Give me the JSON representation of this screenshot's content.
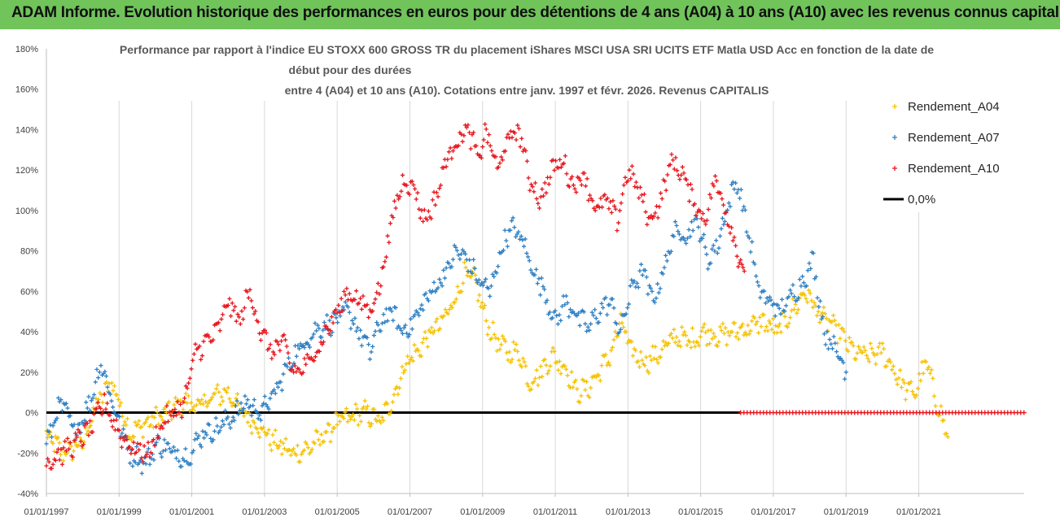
{
  "banner": {
    "title": "ADAM Informe. Evolution historique des performances en euros pour des détentions de 4 ans (A04) à 10 ans (A10) avec les revenus connus capitalisés",
    "background": "#70c45a"
  },
  "chart_data": {
    "type": "scatter",
    "title_lines": [
      "Performance par rapport à l'indice EU STOXX 600 GROSS TR  du placement iShares MSCI USA SRI UCITS ETF Matla USD Acc en fonction de la date de",
      "début pour des durées",
      "entre 4 (A04) et 10 ans (A10). Cotations entre janv. 1997 et févr. 2026. Revenus CAPITALIS"
    ],
    "xlabel": "",
    "ylabel": "",
    "xlim": [
      1997.0,
      2023.9
    ],
    "ylim": [
      -40,
      180
    ],
    "y_ticks": [
      -40,
      -20,
      0,
      20,
      40,
      60,
      80,
      100,
      120,
      140,
      160,
      180
    ],
    "y_tick_labels": [
      "-40%",
      "-20%",
      "0%",
      "20%",
      "40%",
      "60%",
      "80%",
      "100%",
      "120%",
      "140%",
      "160%",
      "180%"
    ],
    "x_ticks": [
      1997,
      1999,
      2001,
      2003,
      2005,
      2007,
      2009,
      2011,
      2013,
      2015,
      2017,
      2019,
      2021
    ],
    "x_tick_labels": [
      "01/01/1997",
      "01/01/1999",
      "01/01/2001",
      "01/01/2003",
      "01/01/2005",
      "01/01/2007",
      "01/01/2009",
      "01/01/2011",
      "01/01/2013",
      "01/01/2015",
      "01/01/2017",
      "01/01/2019",
      "01/01/2021"
    ],
    "grid": "vertical",
    "legend_position": "right",
    "series": [
      {
        "name": "Rendement_A04",
        "color": "#f5c200",
        "marker": "plus",
        "x": [
          1997.0,
          1997.5,
          1998.0,
          1998.4,
          1998.8,
          1999.3,
          1999.8,
          2000.3,
          2000.8,
          2001.2,
          2001.6,
          2002.0,
          2002.4,
          2002.9,
          2003.3,
          2003.8,
          2004.2,
          2004.6,
          2005.0,
          2005.4,
          2005.8,
          2006.2,
          2006.6,
          2006.9,
          2007.2,
          2007.6,
          2007.9,
          2008.2,
          2008.5,
          2008.8,
          2009.1,
          2009.4,
          2009.7,
          2010.0,
          2010.3,
          2010.6,
          2010.9,
          2011.3,
          2011.6,
          2011.9,
          2012.2,
          2012.5,
          2012.8,
          2013.1,
          2013.5,
          2013.9,
          2014.3,
          2014.7,
          2015.1,
          2015.5,
          2015.9,
          2016.3,
          2016.7,
          2017.1,
          2017.5,
          2017.9,
          2018.2,
          2018.5,
          2018.8,
          2019.2,
          2019.6,
          2020.0,
          2020.3,
          2020.6,
          2020.9,
          2021.2,
          2021.5,
          2021.8
        ],
        "values": [
          -12,
          -20,
          -15,
          5,
          15,
          -10,
          -5,
          0,
          5,
          3,
          8,
          10,
          0,
          -8,
          -15,
          -20,
          -18,
          -12,
          -5,
          -2,
          0,
          -5,
          10,
          25,
          30,
          40,
          45,
          55,
          68,
          65,
          45,
          35,
          30,
          30,
          15,
          20,
          28,
          22,
          10,
          12,
          20,
          28,
          45,
          30,
          25,
          30,
          38,
          35,
          40,
          38,
          40,
          42,
          45,
          40,
          50,
          60,
          50,
          45,
          40,
          30,
          28,
          30,
          22,
          12,
          10,
          25,
          5,
          -12
        ]
      },
      {
        "name": "Rendement_A07",
        "color": "#2e7fc2",
        "marker": "plus",
        "x": [
          1997.0,
          1997.4,
          1997.8,
          1998.2,
          1998.5,
          1998.9,
          1999.3,
          1999.7,
          2000.1,
          2000.5,
          2000.9,
          2001.3,
          2001.7,
          2002.1,
          2002.5,
          2002.9,
          2003.3,
          2003.7,
          2004.1,
          2004.5,
          2004.9,
          2005.3,
          2005.6,
          2005.9,
          2006.2,
          2006.5,
          2006.8,
          2007.1,
          2007.4,
          2007.7,
          2008.0,
          2008.3,
          2008.6,
          2008.9,
          2009.2,
          2009.5,
          2009.8,
          2010.1,
          2010.4,
          2010.7,
          2011.0,
          2011.3,
          2011.6,
          2011.9,
          2012.2,
          2012.5,
          2012.8,
          2013.1,
          2013.4,
          2013.7,
          2014.0,
          2014.3,
          2014.6,
          2014.9,
          2015.2,
          2015.5,
          2015.7,
          2016.0,
          2016.3,
          2016.6,
          2016.9,
          2017.2,
          2017.5,
          2017.8,
          2018.1,
          2018.4,
          2018.7,
          2019.0
        ],
        "values": [
          -15,
          5,
          -10,
          5,
          25,
          0,
          -20,
          -25,
          -15,
          -20,
          -22,
          -10,
          -8,
          -2,
          5,
          0,
          10,
          25,
          35,
          42,
          45,
          50,
          40,
          30,
          45,
          50,
          40,
          45,
          55,
          62,
          70,
          80,
          75,
          65,
          60,
          80,
          92,
          85,
          70,
          60,
          45,
          55,
          48,
          42,
          50,
          55,
          40,
          62,
          70,
          55,
          72,
          90,
          88,
          95,
          75,
          85,
          100,
          115,
          90,
          60,
          55,
          50,
          58,
          65,
          75,
          40,
          32,
          20
        ]
      },
      {
        "name": "Rendement_A10",
        "color": "#e8141c",
        "marker": "plus",
        "x": [
          1997.0,
          1997.4,
          1997.8,
          1998.2,
          1998.6,
          1999.0,
          1999.4,
          1999.8,
          2000.2,
          2000.5,
          2000.8,
          2001.1,
          2001.4,
          2001.7,
          2002.0,
          2002.3,
          2002.6,
          2002.9,
          2003.2,
          2003.5,
          2003.8,
          2004.1,
          2004.4,
          2004.7,
          2005.0,
          2005.3,
          2005.6,
          2005.9,
          2006.2,
          2006.5,
          2006.8,
          2007.1,
          2007.4,
          2007.7,
          2008.0,
          2008.3,
          2008.6,
          2008.9,
          2009.1,
          2009.4,
          2009.7,
          2010.0,
          2010.3,
          2010.6,
          2010.9,
          2011.2,
          2011.5,
          2011.8,
          2012.1,
          2012.4,
          2012.7,
          2013.0,
          2013.3,
          2013.6,
          2013.9,
          2014.2,
          2014.5,
          2014.8,
          2015.1,
          2015.4,
          2015.7,
          2016.0,
          2016.2
        ],
        "values": [
          -25,
          -20,
          -15,
          -8,
          5,
          -10,
          -18,
          -20,
          -5,
          0,
          5,
          30,
          35,
          40,
          55,
          45,
          60,
          40,
          30,
          35,
          20,
          22,
          30,
          40,
          50,
          60,
          55,
          50,
          65,
          95,
          115,
          112,
          95,
          105,
          125,
          135,
          140,
          125,
          140,
          120,
          135,
          140,
          115,
          105,
          120,
          125,
          112,
          118,
          100,
          105,
          95,
          120,
          110,
          95,
          105,
          125,
          118,
          105,
          95,
          115,
          100,
          80,
          70
        ]
      },
      {
        "name": "Rendement_A10",
        "color": "#e8141c",
        "marker": "plus-dense",
        "x": [
          2016.1,
          2023.9
        ],
        "values": [
          0,
          0
        ]
      },
      {
        "name": "0,0%",
        "color": "#000000",
        "marker": "line",
        "x": [
          1997.0,
          2016.1
        ],
        "values": [
          0,
          0
        ]
      }
    ]
  }
}
